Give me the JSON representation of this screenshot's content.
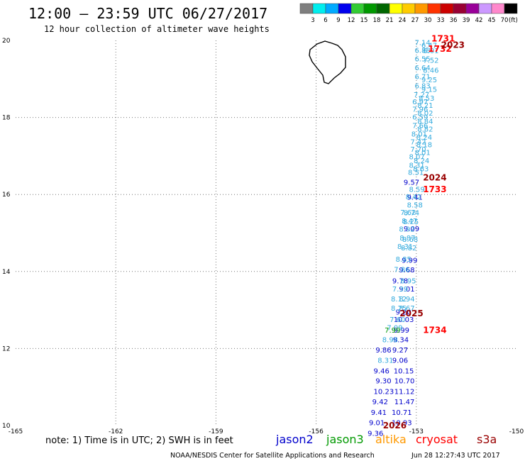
{
  "header": {
    "title": "12:00 – 23:59 UTC 06/27/2017",
    "subtitle": "12 hour collection of altimeter wave heights"
  },
  "colorbar": {
    "labels": [
      "3",
      "6",
      "9",
      "12",
      "15",
      "18",
      "21",
      "24",
      "27",
      "30",
      "33",
      "36",
      "39",
      "42",
      "45",
      "70"
    ],
    "unit": "(ft)",
    "colors": [
      "#7f7f7f",
      "#00eeee",
      "#00aaff",
      "#0000ee",
      "#33cc33",
      "#009900",
      "#006600",
      "#ffff00",
      "#ffcc00",
      "#ff9900",
      "#ff3300",
      "#cc0000",
      "#990033",
      "#990099",
      "#cc99ff",
      "#ff88cc",
      "#000000"
    ]
  },
  "footer": {
    "note": "note: 1) Time is in UTC; 2) SWH is in feet",
    "credit": "NOAA/NESDIS Center for Satellite Applications and Research",
    "timestamp": "Jun 28 12:27:43 UTC 2017"
  },
  "legend": [
    {
      "label": "jason2",
      "color": "#0000cc"
    },
    {
      "label": "jason3",
      "color": "#009900"
    },
    {
      "label": "altika",
      "color": "#ff9900"
    },
    {
      "label": "cryosat",
      "color": "#ff0000"
    },
    {
      "label": "s3a",
      "color": "#990000"
    }
  ],
  "chart_data": {
    "type": "scatter",
    "xlim": [
      -165,
      -150
    ],
    "ylim": [
      10,
      20
    ],
    "x_ticks": [
      "-165",
      "-162",
      "-159",
      "-156",
      "-153",
      "-150"
    ],
    "y_ticks": [
      "10",
      "12",
      "14",
      "16",
      "18",
      "20"
    ],
    "grid": true,
    "series": [
      {
        "name": "jason2",
        "color": "#0000cc",
        "points": [
          {
            "x": -153.38,
            "y": 16.33,
            "label": "9.57"
          },
          {
            "x": -153.28,
            "y": 15.94,
            "label": "9.41"
          },
          {
            "x": -153.38,
            "y": 15.12,
            "label": "9.09"
          },
          {
            "x": -153.44,
            "y": 14.3,
            "label": "9.99"
          },
          {
            "x": -153.52,
            "y": 14.05,
            "label": "9.68"
          },
          {
            "x": -153.72,
            "y": 13.77,
            "label": "9.78"
          },
          {
            "x": -153.52,
            "y": 13.55,
            "label": "9.01"
          },
          {
            "x": -153.62,
            "y": 12.96,
            "label": "9.20"
          },
          {
            "x": -153.68,
            "y": 12.76,
            "label": "10.03"
          },
          {
            "x": -153.68,
            "y": 12.49,
            "label": "9.99"
          },
          {
            "x": -153.7,
            "y": 12.24,
            "label": "9.34"
          },
          {
            "x": -153.72,
            "y": 11.97,
            "label": "9.27"
          },
          {
            "x": -154.22,
            "y": 11.97,
            "label": "9.86"
          },
          {
            "x": -153.72,
            "y": 11.7,
            "label": "9.06"
          },
          {
            "x": -154.28,
            "y": 11.43,
            "label": "9.46"
          },
          {
            "x": -153.68,
            "y": 11.43,
            "label": "10.15"
          },
          {
            "x": -154.22,
            "y": 11.17,
            "label": "9.30"
          },
          {
            "x": -153.66,
            "y": 11.17,
            "label": "10.70"
          },
          {
            "x": -154.28,
            "y": 10.89,
            "label": "10.23"
          },
          {
            "x": -153.66,
            "y": 10.89,
            "label": "11.12"
          },
          {
            "x": -154.32,
            "y": 10.63,
            "label": "9.42"
          },
          {
            "x": -153.66,
            "y": 10.63,
            "label": "11.47"
          },
          {
            "x": -154.36,
            "y": 10.35,
            "label": "9.41"
          },
          {
            "x": -153.74,
            "y": 10.35,
            "label": "10.71"
          },
          {
            "x": -154.42,
            "y": 10.08,
            "label": "9.01"
          },
          {
            "x": -153.74,
            "y": 10.08,
            "label": "10.93"
          },
          {
            "x": -154.46,
            "y": 9.81,
            "label": "9.36"
          }
        ]
      },
      {
        "name": "",
        "color": "#33aadd",
        "points": [
          {
            "x": -153.05,
            "y": 19.95,
            "label": "7.14"
          },
          {
            "x": -152.85,
            "y": 19.88,
            "label": "6.47"
          },
          {
            "x": -153.05,
            "y": 19.75,
            "label": "6.88"
          },
          {
            "x": -152.8,
            "y": 19.74,
            "label": "6.01"
          },
          {
            "x": -153.05,
            "y": 19.53,
            "label": "6.55"
          },
          {
            "x": -152.8,
            "y": 19.49,
            "label": "7.52"
          },
          {
            "x": -153.05,
            "y": 19.3,
            "label": "6.64"
          },
          {
            "x": -152.8,
            "y": 19.24,
            "label": "8.46"
          },
          {
            "x": -153.05,
            "y": 19.07,
            "label": "6.71"
          },
          {
            "x": -152.85,
            "y": 18.99,
            "label": "9.25"
          },
          {
            "x": -153.05,
            "y": 18.83,
            "label": "6.83"
          },
          {
            "x": -152.85,
            "y": 18.74,
            "label": "9.15"
          },
          {
            "x": -153.08,
            "y": 18.6,
            "label": "7.27"
          },
          {
            "x": -152.93,
            "y": 18.51,
            "label": "8.53"
          },
          {
            "x": -153.12,
            "y": 18.42,
            "label": "6.97"
          },
          {
            "x": -152.97,
            "y": 18.32,
            "label": "8.21"
          },
          {
            "x": -153.12,
            "y": 18.22,
            "label": "7.96"
          },
          {
            "x": -152.97,
            "y": 18.12,
            "label": "8.02"
          },
          {
            "x": -153.12,
            "y": 18.02,
            "label": "6.59"
          },
          {
            "x": -152.97,
            "y": 17.91,
            "label": "8.84"
          },
          {
            "x": -153.12,
            "y": 17.8,
            "label": "7.66"
          },
          {
            "x": -152.97,
            "y": 17.71,
            "label": "8.82"
          },
          {
            "x": -153.15,
            "y": 17.58,
            "label": "8.01"
          },
          {
            "x": -153.0,
            "y": 17.5,
            "label": "8.24"
          },
          {
            "x": -153.18,
            "y": 17.38,
            "label": "7.42"
          },
          {
            "x": -153.0,
            "y": 17.3,
            "label": "8.18"
          },
          {
            "x": -153.18,
            "y": 17.18,
            "label": "7.70"
          },
          {
            "x": -153.05,
            "y": 17.1,
            "label": "8.01"
          },
          {
            "x": -153.22,
            "y": 16.99,
            "label": "8.07"
          },
          {
            "x": -153.08,
            "y": 16.89,
            "label": "8.24"
          },
          {
            "x": -153.22,
            "y": 16.77,
            "label": "8.31"
          },
          {
            "x": -153.1,
            "y": 16.68,
            "label": "8.63"
          },
          {
            "x": -153.25,
            "y": 16.58,
            "label": "8.51"
          },
          {
            "x": -153.22,
            "y": 16.14,
            "label": "8.59"
          },
          {
            "x": -153.32,
            "y": 15.95,
            "label": "8.42"
          },
          {
            "x": -153.28,
            "y": 15.74,
            "label": "8.58"
          },
          {
            "x": -153.48,
            "y": 15.54,
            "label": "7.62"
          },
          {
            "x": -153.38,
            "y": 15.53,
            "label": "8.74"
          },
          {
            "x": -153.44,
            "y": 15.32,
            "label": "8.47"
          },
          {
            "x": -153.4,
            "y": 15.3,
            "label": "8.25"
          },
          {
            "x": -153.52,
            "y": 15.11,
            "label": "8.92"
          },
          {
            "x": -153.5,
            "y": 14.88,
            "label": "8.87"
          },
          {
            "x": -153.42,
            "y": 14.84,
            "label": "8.68"
          },
          {
            "x": -153.57,
            "y": 14.66,
            "label": "8.31"
          },
          {
            "x": -153.46,
            "y": 14.62,
            "label": "8.82"
          },
          {
            "x": -153.62,
            "y": 14.33,
            "label": "8.85"
          },
          {
            "x": -153.67,
            "y": 14.06,
            "label": "7.86"
          },
          {
            "x": -153.48,
            "y": 13.77,
            "label": "8.95"
          },
          {
            "x": -153.72,
            "y": 13.55,
            "label": "7.39"
          },
          {
            "x": -153.76,
            "y": 13.3,
            "label": "8.12"
          },
          {
            "x": -153.52,
            "y": 13.3,
            "label": "8.94"
          },
          {
            "x": -153.76,
            "y": 13.06,
            "label": "8.25"
          },
          {
            "x": -153.52,
            "y": 13.06,
            "label": "8.67"
          },
          {
            "x": -153.8,
            "y": 12.76,
            "label": "7.60"
          },
          {
            "x": -153.88,
            "y": 12.55,
            "label": "7.09"
          },
          {
            "x": -154.02,
            "y": 12.24,
            "label": "8.98"
          },
          {
            "x": -154.16,
            "y": 11.7,
            "label": "8.31"
          }
        ]
      },
      {
        "name": "jason3",
        "color": "#009900",
        "points": [
          {
            "x": -153.95,
            "y": 12.49,
            "label": "7.99"
          }
        ]
      },
      {
        "name": "cryosat",
        "color": "#ff0000",
        "points": [
          {
            "x": -152.55,
            "y": 20.05,
            "label": "1731"
          },
          {
            "x": -152.65,
            "y": 19.78,
            "label": "1732"
          },
          {
            "x": -152.8,
            "y": 16.13,
            "label": "1733"
          },
          {
            "x": -152.8,
            "y": 12.48,
            "label": "1734"
          }
        ]
      },
      {
        "name": "s3a",
        "color": "#990000",
        "points": [
          {
            "x": -152.26,
            "y": 19.88,
            "label": "2023"
          },
          {
            "x": -152.8,
            "y": 16.44,
            "label": "2024"
          },
          {
            "x": -153.5,
            "y": 12.91,
            "label": "2025"
          },
          {
            "x": -154.0,
            "y": 10.0,
            "label": "2026"
          }
        ]
      }
    ]
  }
}
